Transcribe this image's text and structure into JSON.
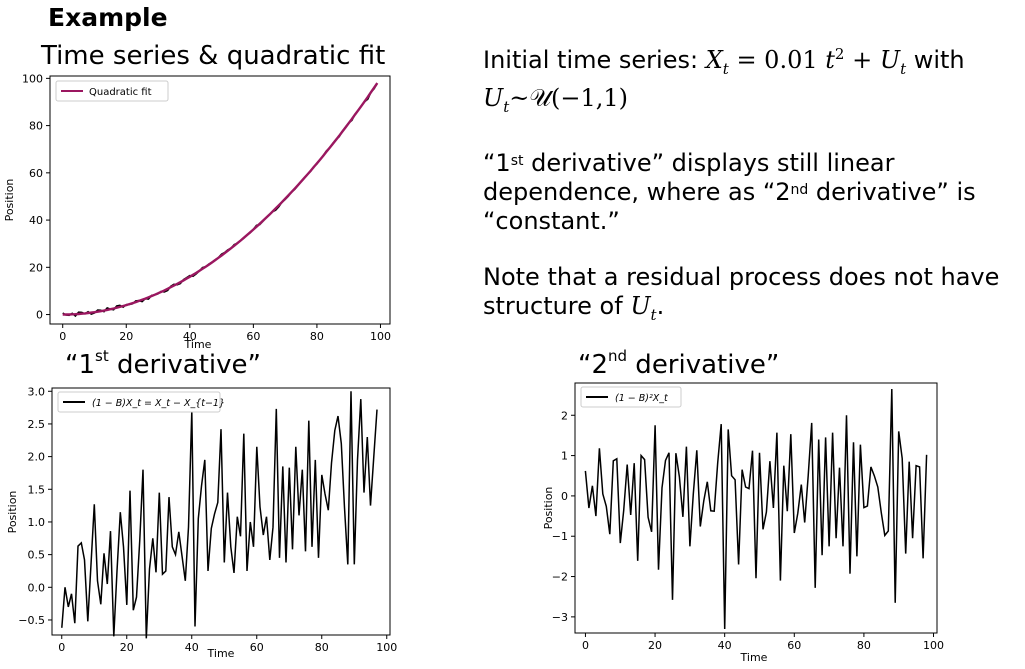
{
  "slide": {
    "title": "Example",
    "description": {
      "intro_a": "Initial time series: ",
      "intro_b": " with",
      "deriv_a": "“1",
      "deriv_b": "st",
      "deriv_c": " derivative” displays still linear dependence, where as “2",
      "deriv_d": "nd",
      "deriv_e": " derivative” is “constant.”",
      "note_a": "Note that a residual process does not have structure of ",
      "note_b": "."
    }
  },
  "math": {
    "X": "X",
    "t": "t",
    "eq": " = 0.01 ",
    "t2": "t",
    "sq": "2",
    "plus": " + ",
    "U": "U",
    "dist": "~𝒰(−1,1)"
  },
  "colors": {
    "fit_line": "#9b1760",
    "data_line": "#000000",
    "axis": "#000000"
  },
  "panels": {
    "top": {
      "title": "Time series & quadratic fit"
    },
    "d1": {
      "title_a": "“1",
      "title_b": "st",
      "title_c": " derivative”"
    },
    "d2": {
      "title_a": "“2",
      "title_b": "nd",
      "title_c": " derivative”"
    }
  },
  "chart_data": [
    {
      "type": "line",
      "xlabel": "Time",
      "ylabel": "Position",
      "xlim": [
        -4,
        103
      ],
      "ylim": [
        -4,
        101
      ],
      "xticks": [
        0,
        20,
        40,
        60,
        80,
        100
      ],
      "yticks": [
        0,
        20,
        40,
        60,
        80,
        100
      ],
      "legend": {
        "placement": "top-left",
        "label": "Quadratic fit"
      },
      "series": [
        {
          "name": "",
          "role": "data",
          "x_start": 0,
          "x_step": 1,
          "y": [
            0.6,
            -0.2,
            -0.3,
            0.5,
            -0.6,
            1.0,
            0.9,
            0.3,
            1.2,
            0.2,
            0.7,
            1.9,
            1.8,
            1.2,
            2.8,
            2.3,
            2.0,
            3.6,
            3.9,
            3.1,
            4.2,
            4.3,
            4.6,
            5.8,
            5.9,
            5.5,
            6.7,
            6.6,
            8.1,
            8.3,
            8.8,
            9.8,
            9.6,
            10.2,
            11.9,
            12.8,
            12.6,
            13.1,
            14.8,
            15.6,
            16.5,
            16.2,
            17.2,
            18.4,
            19.9,
            20.3,
            21.4,
            22.2,
            23.2,
            24.1,
            25.6,
            26.3,
            27.4,
            28.1,
            29.6,
            30.2,
            31.4,
            32.3,
            33.7,
            34.6,
            36.1,
            37.8,
            38.1,
            39.5,
            40.9,
            42.3,
            43.5,
            44.2,
            45.6,
            47.6,
            48.7,
            50.1,
            51.9,
            53.0,
            54.6,
            56.2,
            57.7,
            59.3,
            60.6,
            62.6,
            63.8,
            65.5,
            67.4,
            69.3,
            70.6,
            72.5,
            74.2,
            75.3,
            77.6,
            79.4,
            81.1,
            82.2,
            84.8,
            86.4,
            88.4,
            90.1,
            91.2,
            94.1,
            95.6,
            97.9
          ]
        },
        {
          "name": "Quadratic fit",
          "role": "fit",
          "fit": {
            "a": 0.01,
            "b": 0,
            "c": 0
          },
          "x": [
            0,
            99
          ]
        }
      ]
    },
    {
      "type": "line",
      "xlabel": "Time",
      "ylabel": "Position",
      "xlim": [
        -3,
        101
      ],
      "ylim": [
        -0.73,
        3.05
      ],
      "xticks": [
        0,
        20,
        40,
        60,
        80,
        100
      ],
      "yticks": [
        -0.5,
        0.0,
        0.5,
        1.0,
        1.5,
        2.0,
        2.5,
        3.0
      ],
      "ytick_labels": [
        "−0.5",
        "0.0",
        "0.5",
        "1.0",
        "1.5",
        "2.0",
        "2.5",
        "3.0"
      ],
      "legend": {
        "placement": "top-left",
        "label": "(1 − B)X_t = X_t − X_{t−1}"
      },
      "series": [
        {
          "name": "(1 − B)X_t = X_t − X_{t−1}",
          "x_start": 0,
          "x_step": 1,
          "y": [
            -0.62,
            0.0,
            -0.3,
            -0.1,
            -0.55,
            0.63,
            0.68,
            0.42,
            -0.52,
            0.35,
            1.27,
            0.1,
            -0.26,
            0.52,
            0.05,
            0.86,
            -0.75,
            0.25,
            1.15,
            0.62,
            -0.27,
            1.48,
            -0.35,
            -0.15,
            0.73,
            1.8,
            -0.78,
            0.28,
            0.75,
            0.23,
            1.45,
            0.2,
            0.25,
            1.38,
            0.62,
            0.5,
            0.85,
            0.48,
            0.1,
            0.92,
            2.7,
            -0.6,
            1.05,
            1.55,
            1.95,
            0.25,
            0.9,
            1.12,
            1.3,
            2.42,
            0.38,
            1.45,
            0.62,
            0.22,
            1.08,
            0.78,
            2.35,
            0.25,
            1.0,
            0.62,
            2.15,
            1.23,
            0.8,
            1.08,
            0.42,
            0.92,
            2.73,
            0.45,
            1.85,
            0.38,
            1.83,
            0.58,
            2.15,
            1.1,
            1.8,
            0.55,
            2.55,
            0.62,
            1.95,
            0.45,
            1.72,
            1.43,
            1.18,
            1.9,
            2.4,
            2.62,
            2.2,
            1.22,
            0.35,
            3.0,
            0.35,
            1.95,
            2.88,
            1.45,
            2.3,
            1.25,
            2.0,
            2.72
          ]
        }
      ]
    },
    {
      "type": "line",
      "xlabel": "Time",
      "ylabel": "Position",
      "xlim": [
        -3,
        101
      ],
      "ylim": [
        -3.4,
        2.8
      ],
      "xticks": [
        0,
        20,
        40,
        60,
        80,
        100
      ],
      "yticks": [
        -3,
        -2,
        -1,
        0,
        1,
        2
      ],
      "ytick_labels": [
        "−3",
        "−2",
        "−1",
        "0",
        "1",
        "2"
      ],
      "legend": {
        "placement": "top-left",
        "label": "(1 − B)²X_t"
      },
      "series": [
        {
          "name": "(1 − B)²X_t",
          "x_start": 0,
          "x_step": 1,
          "y": [
            0.62,
            -0.3,
            0.25,
            -0.5,
            1.18,
            0.05,
            -0.26,
            -0.95,
            0.87,
            0.92,
            -1.17,
            -0.36,
            0.78,
            -0.47,
            0.81,
            -1.61,
            1.0,
            0.9,
            -0.53,
            -0.89,
            1.75,
            -1.83,
            0.2,
            0.88,
            1.07,
            -2.58,
            1.06,
            0.47,
            -0.52,
            1.22,
            -1.25,
            0.05,
            1.13,
            -0.76,
            -0.12,
            0.35,
            -0.37,
            -0.38,
            0.82,
            1.78,
            -3.3,
            1.65,
            0.5,
            0.4,
            -1.7,
            0.65,
            0.22,
            0.18,
            1.12,
            -2.04,
            1.07,
            -0.83,
            -0.4,
            0.86,
            -0.3,
            1.57,
            -2.1,
            0.75,
            -0.38,
            1.53,
            -0.92,
            -0.43,
            0.28,
            -0.66,
            0.5,
            1.81,
            -2.28,
            1.4,
            -1.47,
            1.45,
            -1.25,
            1.57,
            -1.05,
            0.7,
            -1.25,
            2.0,
            -1.93,
            1.33,
            -1.5,
            1.27,
            -0.29,
            -0.25,
            0.72,
            0.5,
            0.22,
            -0.42,
            -0.98,
            -0.87,
            2.65,
            -2.65,
            1.6,
            0.93,
            -1.43,
            0.85,
            -1.05,
            0.75,
            0.72,
            -1.55,
            1.02
          ]
        }
      ]
    }
  ]
}
